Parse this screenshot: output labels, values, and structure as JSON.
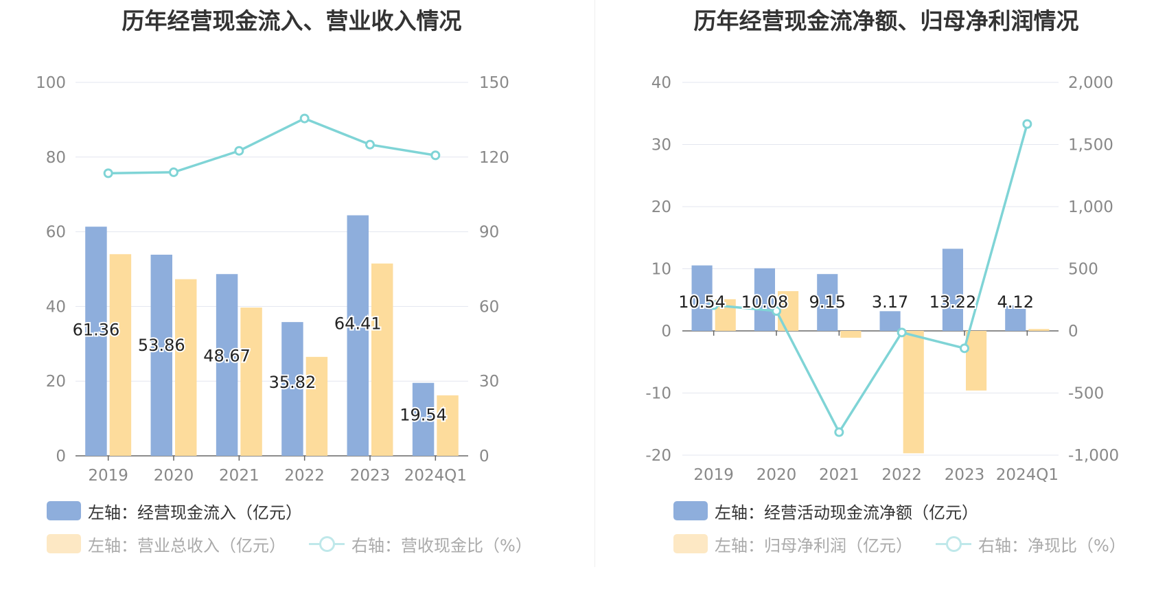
{
  "chart_data": [
    {
      "type": "bar",
      "title": "历年经营现金流入、营业收入情况",
      "categories": [
        "2019",
        "2020",
        "2021",
        "2022",
        "2023",
        "2024Q1"
      ],
      "y_left": {
        "min": 0,
        "max": 100,
        "ticks": [
          "0",
          "20",
          "40",
          "60",
          "80",
          "100"
        ]
      },
      "y_right": {
        "min": 0,
        "max": 150,
        "ticks": [
          "0",
          "30",
          "60",
          "90",
          "120",
          "150"
        ]
      },
      "grid": true,
      "legend_position": "bottom-left",
      "series": [
        {
          "name": "左轴：经营现金流入（亿元）",
          "axis": "left",
          "kind": "bar",
          "color": "#8eaedc",
          "values": [
            61.36,
            53.86,
            48.67,
            35.82,
            64.41,
            19.54
          ],
          "labels": [
            "61.36",
            "53.86",
            "48.67",
            "35.82",
            "64.41",
            "19.54"
          ]
        },
        {
          "name": "左轴：营业总收入（亿元）",
          "axis": "left",
          "kind": "bar",
          "color": "#fddc9c",
          "values": [
            54.0,
            47.3,
            39.7,
            26.5,
            51.5,
            16.2
          ]
        },
        {
          "name": "右轴：营收现金比（%）",
          "axis": "right",
          "kind": "line",
          "color": "#7fd4d6",
          "values": [
            113.5,
            113.9,
            122.5,
            135.5,
            125.0,
            120.7
          ]
        }
      ]
    },
    {
      "type": "bar",
      "title": "历年经营现金流净额、归母净利润情况",
      "categories": [
        "2019",
        "2020",
        "2021",
        "2022",
        "2023",
        "2024Q1"
      ],
      "y_left": {
        "min": -20,
        "max": 40,
        "ticks": [
          "-20",
          "-10",
          "0",
          "10",
          "20",
          "30",
          "40"
        ]
      },
      "y_right": {
        "min": -1000,
        "max": 2000,
        "ticks": [
          "-1,000",
          "-500",
          "0",
          "500",
          "1,000",
          "1,500",
          "2,000"
        ]
      },
      "grid": true,
      "legend_position": "bottom-left",
      "series": [
        {
          "name": "左轴：经营活动现金流净额（亿元）",
          "axis": "left",
          "kind": "bar",
          "color": "#8eaedc",
          "values": [
            10.54,
            10.08,
            9.15,
            3.17,
            13.22,
            4.12
          ],
          "labels": [
            "10.54",
            "10.08",
            "9.15",
            "3.17",
            "13.22",
            "4.12"
          ]
        },
        {
          "name": "左轴：归母净利润（亿元）",
          "axis": "left",
          "kind": "bar",
          "color": "#fddc9c",
          "values": [
            5.1,
            6.4,
            -1.1,
            -19.7,
            -9.6,
            0.3
          ]
        },
        {
          "name": "右轴：净现比（%）",
          "axis": "right",
          "kind": "line",
          "color": "#7fd4d6",
          "values": [
            207,
            160,
            -815,
            -13,
            -140,
            1665
          ]
        }
      ]
    }
  ]
}
